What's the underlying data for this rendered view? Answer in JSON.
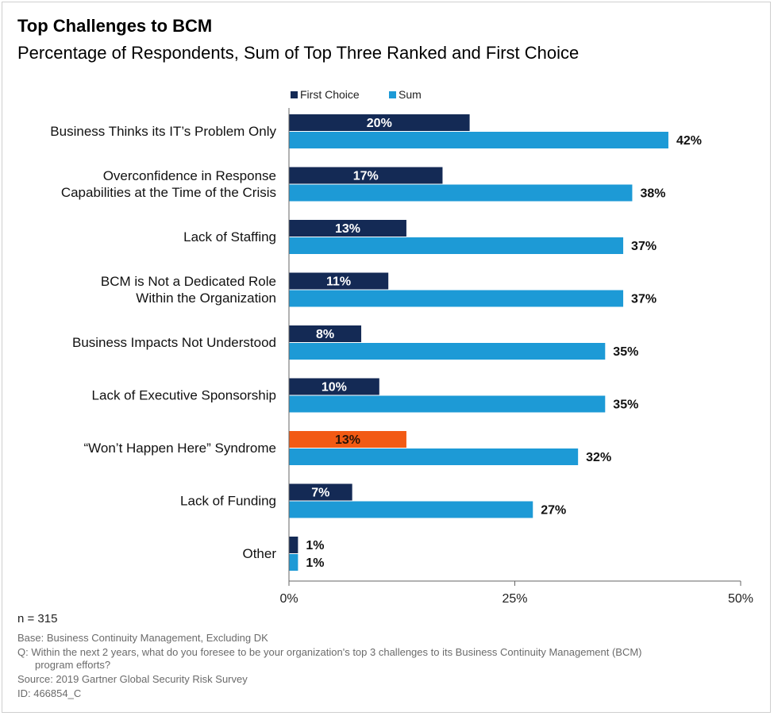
{
  "title": "Top Challenges to BCM",
  "subtitle": "Percentage of Respondents, Sum of Top Three Ranked and First Choice",
  "colors": {
    "first_choice": "#142a55",
    "sum": "#1d9ad6",
    "highlight": "#f25a14",
    "axis": "#666666"
  },
  "chart_data": {
    "type": "bar",
    "orientation": "horizontal",
    "categories": [
      [
        "Business Thinks its IT’s Problem Only"
      ],
      [
        "Overconfidence in Response",
        "Capabilities at the Time of the Crisis"
      ],
      [
        "Lack of Staffing"
      ],
      [
        "BCM is Not a Dedicated Role",
        "Within the Organization"
      ],
      [
        "Business Impacts Not Understood"
      ],
      [
        "Lack of Executive Sponsorship"
      ],
      [
        "“Won’t Happen Here” Syndrome"
      ],
      [
        "Lack of Funding"
      ],
      [
        "Other"
      ]
    ],
    "series": [
      {
        "name": "First Choice",
        "values": [
          20,
          17,
          13,
          11,
          8,
          10,
          13,
          7,
          1
        ]
      },
      {
        "name": "Sum",
        "values": [
          42,
          38,
          37,
          37,
          35,
          35,
          32,
          27,
          1
        ]
      }
    ],
    "data_labels": {
      "First Choice": [
        "20%",
        "17%",
        "13%",
        "11%",
        "8%",
        "10%",
        "13%",
        "7%",
        "1%"
      ],
      "Sum": [
        "42%",
        "38%",
        "37%",
        "37%",
        "35%",
        "35%",
        "32%",
        "27%",
        "1%"
      ]
    },
    "highlight_index": 6,
    "xlim": [
      0,
      50
    ],
    "xticks": [
      0,
      25,
      50
    ],
    "xtick_labels": [
      "0%",
      "25%",
      "50%"
    ],
    "legend_position": "top",
    "grid": false
  },
  "footer": {
    "n": "n = 315",
    "base": "Base: Business Continuity Management, Excluding DK",
    "question_line1": "Q: Within the next 2 years, what do you foresee to be your organization's top 3 challenges to its Business Continuity Management (BCM)",
    "question_line2": "program efforts?",
    "source": "Source: 2019 Gartner Global Security Risk Survey",
    "id": "ID: 466854_C"
  }
}
